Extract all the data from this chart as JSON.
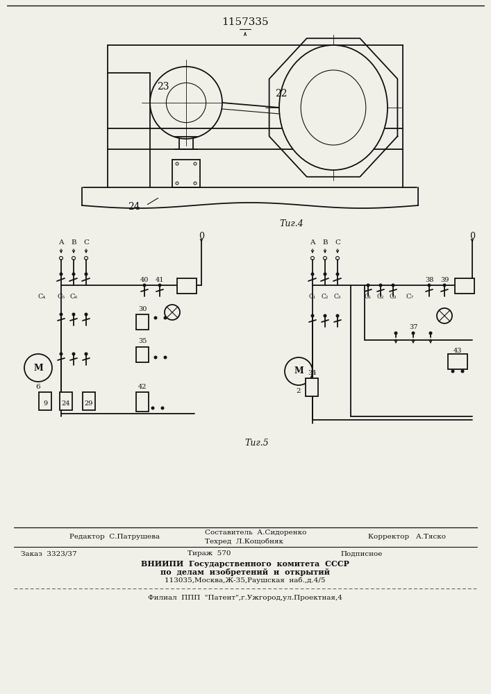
{
  "title": "1157335",
  "fig4_label": "Τиг.4",
  "fig5_label": "Τиг.5",
  "label_23": "23",
  "label_22": "22",
  "label_24": "24",
  "footer_redaktor": "Редактор  С.Патрушева",
  "footer_sostavitel": "Составитель  А.Сидоренко",
  "footer_tehred": "Техред  Л.Кощобняк",
  "footer_korrektor": "Корректор   А.Тяско",
  "footer_zakaz": "Заказ  3323/37",
  "footer_tirazh": "Тираж  570",
  "footer_podpisnoe": "Подписное",
  "footer_vnipi": "ВНИИПИ  Государственного  комитета  СССР",
  "footer_po": "по  делам  изобретений  и  открытий",
  "footer_addr": "113035,Москва,Ж-35,Раушская  наб.,д.4/5",
  "footer_filial": "Филиал  ППП  \"Патент\",г.Ужгород,ул.Проектная,4",
  "bg_color": "#f0efe8",
  "line_color": "#111111"
}
